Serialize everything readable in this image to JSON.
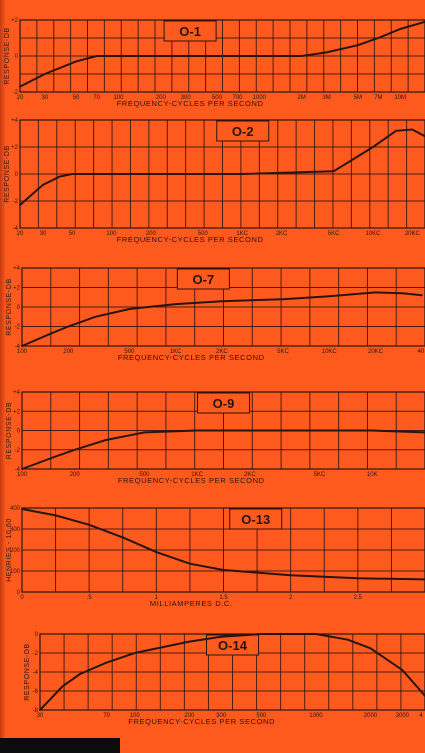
{
  "chart_data": [
    {
      "type": "line",
      "title": "O-1",
      "xlabel": "FREQUENCY-CYCLES PER SECOND",
      "ylabel": "RESPONSE-DB",
      "ylim": [
        -2,
        2
      ],
      "yticks": [
        "+2",
        "0",
        "-2"
      ],
      "xtick_labels": [
        "20",
        "30",
        "50",
        "70",
        "100",
        "200",
        "300",
        "500",
        "700",
        "1000",
        "2M",
        "3M",
        "5M",
        "7M",
        "10M"
      ],
      "series": [
        {
          "x": [
            20,
            30,
            50,
            70,
            100,
            1000,
            2000,
            3000,
            5000,
            7000,
            10000,
            15000
          ],
          "y": [
            -1.7,
            -1.0,
            -0.3,
            0,
            0,
            0,
            0,
            0.2,
            0.6,
            1.0,
            1.5,
            1.9
          ]
        }
      ]
    },
    {
      "type": "line",
      "title": "O-2",
      "xlabel": "FREQUENCY-CYCLES PER SECOND",
      "ylabel": "RESPONSE-DB",
      "ylim": [
        -4,
        4
      ],
      "yticks": [
        "+4",
        "+2",
        "0",
        "-2",
        "-4"
      ],
      "xtick_labels": [
        "20",
        "30",
        "50",
        "100",
        "200",
        "500",
        "1KC",
        "2KC",
        "5KC",
        "10KC",
        "20KC"
      ],
      "series": [
        {
          "x": [
            20,
            30,
            40,
            50,
            100,
            1000,
            5000,
            10000,
            15000,
            20000,
            25000
          ],
          "y": [
            -2.3,
            -0.8,
            -0.2,
            0,
            0,
            0,
            0.2,
            2.0,
            3.2,
            3.3,
            2.8
          ]
        }
      ]
    },
    {
      "type": "line",
      "title": "O-7",
      "xlabel": "FREQUENCY-CYCLES PER SECOND",
      "ylabel": "RESPONSE-DB",
      "ylim": [
        -4,
        4
      ],
      "yticks": [
        "+4",
        "+2",
        "0",
        "-2",
        "-4"
      ],
      "xtick_labels": [
        "100",
        "200",
        "500",
        "1KC",
        "2KC",
        "5KC",
        "10KC",
        "20KC",
        "40"
      ],
      "series": [
        {
          "x": [
            100,
            150,
            200,
            300,
            500,
            1000,
            2000,
            5000,
            10000,
            20000,
            30000,
            40000
          ],
          "y": [
            -4,
            -2.8,
            -2,
            -1,
            -0.2,
            0.3,
            0.6,
            0.8,
            1.1,
            1.5,
            1.4,
            1.2
          ]
        }
      ]
    },
    {
      "type": "line",
      "title": "O-9",
      "xlabel": "FREQUENCY-CYCLES PER SECOND",
      "ylabel": "RESPONSE-DB",
      "ylim": [
        -4,
        4
      ],
      "yticks": [
        "+4",
        "+2",
        "0",
        "-2",
        "-4"
      ],
      "xtick_labels": [
        "100",
        "200",
        "500",
        "1KC",
        "2KC",
        "5KC",
        "10K"
      ],
      "series": [
        {
          "x": [
            100,
            150,
            200,
            300,
            500,
            1000,
            2000,
            5000,
            10000,
            20000
          ],
          "y": [
            -4,
            -2.8,
            -2,
            -1,
            -0.2,
            0,
            0,
            0,
            0,
            -0.2
          ]
        }
      ]
    },
    {
      "type": "line",
      "title": "O-13",
      "xlabel": "MILLIAMPERES D.C.",
      "ylabel": "HENRIES - 10,60",
      "ylim": [
        0,
        400
      ],
      "yticks": [
        "400",
        "300",
        "200",
        "100",
        "0"
      ],
      "xtick_labels": [
        "0",
        ".5",
        "1",
        "1.5",
        "2",
        "2.5"
      ],
      "series": [
        {
          "x": [
            0,
            0.25,
            0.5,
            0.75,
            1.0,
            1.25,
            1.5,
            2.0,
            2.5,
            3.0
          ],
          "y": [
            395,
            365,
            320,
            260,
            190,
            135,
            105,
            80,
            65,
            60
          ]
        }
      ]
    },
    {
      "type": "line",
      "title": "O-14",
      "xlabel": "FREQUENCY-CYCLES PER SECOND",
      "ylabel": "RESPONSE-DB",
      "ylim": [
        -8,
        0
      ],
      "yticks": [
        "0",
        "-2",
        "-4",
        "-6",
        "-8"
      ],
      "xtick_labels": [
        "30",
        "70",
        "100",
        "200",
        "300",
        "500",
        "1000",
        "2000",
        "3000",
        "4"
      ],
      "series": [
        {
          "x": [
            30,
            40,
            50,
            70,
            100,
            200,
            300,
            500,
            1000,
            1500,
            2000,
            3000,
            4000
          ],
          "y": [
            -8,
            -5.5,
            -4.2,
            -3,
            -2,
            -0.8,
            -0.3,
            0,
            0,
            -0.6,
            -1.5,
            -3.8,
            -6.5
          ]
        }
      ]
    }
  ]
}
